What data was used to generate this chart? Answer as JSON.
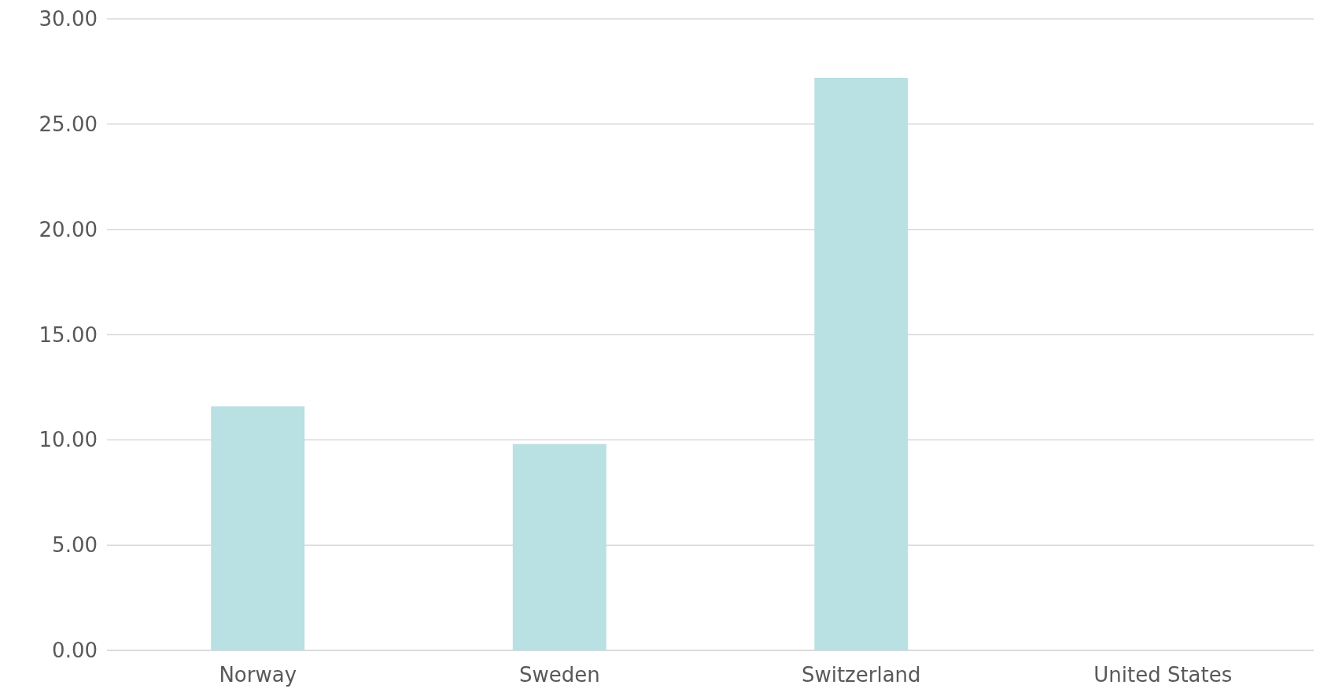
{
  "chart_data": {
    "type": "bar",
    "categories": [
      "Norway",
      "Sweden",
      "Switzerland",
      "United States"
    ],
    "values": [
      11.6,
      9.8,
      27.2,
      0
    ],
    "color": "#b9e0e3",
    "ylim": [
      0,
      30
    ],
    "yticks": [
      {
        "value": 0,
        "label": "0.00"
      },
      {
        "value": 5,
        "label": "5.00"
      },
      {
        "value": 10,
        "label": "10.00"
      },
      {
        "value": 15,
        "label": "15.00"
      },
      {
        "value": 20,
        "label": "20.00"
      },
      {
        "value": 25,
        "label": "25.00"
      },
      {
        "value": 30,
        "label": "30.00"
      }
    ],
    "grid": "y"
  }
}
